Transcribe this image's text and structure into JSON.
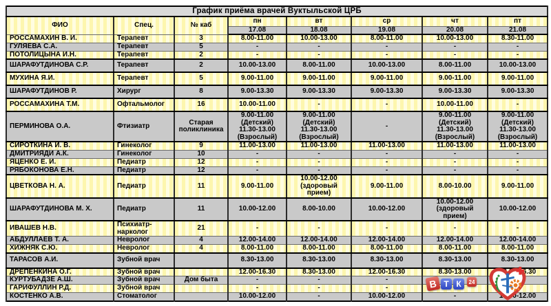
{
  "table": {
    "title": "График приёма врачей Вуктыльской ЦРБ",
    "columns": {
      "fio": "ФИО",
      "spec": "Спец.",
      "kab": "№ каб"
    },
    "days": [
      {
        "label": "пн",
        "date": "17.08"
      },
      {
        "label": "вт",
        "date": "18.08"
      },
      {
        "label": "ср",
        "date": "19.08"
      },
      {
        "label": "чт",
        "date": "20.08"
      },
      {
        "label": "пт",
        "date": "21.08"
      }
    ],
    "rows": [
      {
        "fio": "РОССАМАХИН В. И.",
        "spec": "Терапевт",
        "kab": "3",
        "times": [
          "8.00-11.00",
          "10.00-13.00",
          "8.00-11.00",
          "10.00-13.00",
          "8.30-11.00"
        ],
        "divider_below": false
      },
      {
        "fio": "ГУЛЯЕВА С.А.",
        "spec": "Терапевт",
        "kab": "5",
        "times": [
          "-",
          "-",
          "-",
          "-",
          "-"
        ],
        "divider_below": false
      },
      {
        "fio": "ПОТОЛИЦЫНА И.Н.",
        "spec": "Терапевт",
        "kab": "2",
        "times": [
          "-",
          "-",
          "-",
          "-",
          "-"
        ],
        "divider_below": true
      },
      {
        "fio": "ШАРАФУТДИНОВА С.Р.",
        "spec": "Терапевт",
        "kab": "2",
        "times": [
          "10.00-13.00",
          "8.00-11.00",
          "10.00-13.00",
          "8.00-11.00",
          "10.00-13.00"
        ],
        "divider_below": true
      },
      {
        "fio": "МУХИНА Я.И.",
        "spec": "Терапевт",
        "kab": "5",
        "times": [
          "9.00-11.00",
          "9.00-11.00",
          "9.00-11.00",
          "9.00-11.00",
          "9.00-11.00"
        ],
        "divider_below": true
      },
      {
        "fio": "ШАРАФУТДИНОВ Р.",
        "spec": "Хирург",
        "kab": "8",
        "times": [
          "9.00-13.30",
          "9.00-13.30",
          "9.00-13.30",
          "9.00-13.30",
          "9.00-13.30"
        ],
        "divider_below": true
      },
      {
        "fio": "РОССАМАХИНА Т.М.",
        "spec": "Офтальмолог",
        "kab": "16",
        "times": [
          "10.00-11.00",
          "-",
          "-",
          "10.00-11.00",
          "-"
        ],
        "divider_below": true
      },
      {
        "fio": "ПЕРМИНОВА О.А.",
        "spec": "Фтизиатр",
        "kab": "Старая\nполиклиника",
        "times": [
          "9.00-11.00\n(Детский)\n11.30-13.00\n(Взрослый)",
          "9.00-11.00\n(Детский)\n11.30-13.00\n(Взрослый)",
          "-",
          "9.00-11.00\n(Детский)\n11.30-13.00\n(Взрослый)",
          "9.00-11.00\n(Детский)\n11.30-13.00\n(Взрослый)"
        ],
        "divider_below": true
      },
      {
        "fio": "СИРОТКИНА И. В.",
        "spec": "Гинеколог",
        "kab": "9",
        "times": [
          "11.00-13.00",
          "11.00-13.00",
          "11.00-13.00",
          "11.00-13.00",
          "11.00-13.00"
        ],
        "divider_below": false
      },
      {
        "fio": "ДМИТРИЯДИ А.К.",
        "spec": "Гинеколог",
        "kab": "10",
        "times": [
          "-",
          "-",
          "-",
          "-",
          "-"
        ],
        "divider_below": false
      },
      {
        "fio": "ЯЦЕНКО Е. И.",
        "spec": "Педиатр",
        "kab": "12",
        "times": [
          "-",
          "-",
          "-",
          "-",
          "-"
        ],
        "divider_below": false
      },
      {
        "fio": "РЯБОКОНОВА Е.Н.",
        "spec": "Педиатр",
        "kab": "12",
        "times": [
          "-",
          "-",
          "-",
          "-",
          "-"
        ],
        "divider_below": true
      },
      {
        "fio": "ЦВЕТКОВА Н. А.",
        "spec": "Педиатр",
        "kab": "11",
        "times": [
          "9.00-11.00",
          "10.00-12.00\n(здоровый прием)",
          "9.00-11.00",
          "8.00-10.00",
          "9.00-11.00"
        ],
        "divider_below": true
      },
      {
        "fio": "ШАРАФУТДИНОВА М. Х.",
        "spec": "Педиатр",
        "kab": "11",
        "times": [
          "10.00-12.00",
          "8.00-10.00",
          "10.00-12.00",
          "10.00-12.00\n(здоровый прием)",
          "10.00-12.00"
        ],
        "divider_below": true
      },
      {
        "fio": "ИВАШЕВ Н.В.",
        "spec": "Психиатр-нарколог",
        "kab": "21",
        "times": [
          "-",
          "-",
          "-",
          "-",
          "-"
        ],
        "divider_below": false
      },
      {
        "fio": "АБДУЛЛАЕВ Т. А.",
        "spec": "Невролог",
        "kab": "4",
        "times": [
          "12.00-14.00",
          "12.00-14.00",
          "12.00-14.00",
          "12.00-14.00",
          "12.00-14.00"
        ],
        "divider_below": false
      },
      {
        "fio": "ХИЖНЯК С.Ю.",
        "spec": "Невролог",
        "kab": "4",
        "times": [
          "8.00-11.00",
          "8.00-11.00",
          "8.00-11.00",
          "8.00-11.00",
          "8.00-11.00"
        ],
        "divider_below": true
      },
      {
        "fio": "ТАРАСОВ А.И.",
        "spec": "Зубной врач",
        "kab": "",
        "times": [
          "8.30-13.00",
          "8.30-13.00",
          "8.30-13.00",
          "8.30-13.00",
          "8.30-13.00"
        ],
        "divider_below": true
      },
      {
        "fio": "ДРЕПЕНКИНА О.Г.",
        "spec": "Зубной врач",
        "kab": "",
        "times": [
          "12.00-16.30",
          "8.30-13.00",
          "12.00-16.30",
          "8.30-13.00",
          "12.00-16.30"
        ],
        "divider_below": false
      },
      {
        "fio": "КУРТУБАДЗЕ А.Ш.",
        "spec": "Зубной врач",
        "kab": "Дом быта",
        "times": [
          "-",
          "-",
          "-",
          "-",
          "-"
        ],
        "divider_below": false
      },
      {
        "fio": "ГАРИФУЛЛИН Р.Д.",
        "spec": "Зубной врач",
        "kab": "",
        "times": [
          "-",
          "-",
          "-",
          "-",
          "-"
        ],
        "divider_below": false
      },
      {
        "fio": "КОСТЕНКО А.В.",
        "spec": "Стоматолог",
        "kab": "",
        "times": [
          "10.00-12.00",
          "-",
          "10.00-12.00",
          "-",
          "10.00-12.00"
        ],
        "divider_below": false
      }
    ]
  },
  "logos": {
    "vtk": {
      "letter_v": "В",
      "letter_t": "Т",
      "letter_k": "К",
      "number": "24"
    },
    "hospital_emblem": "heart-medical-emblem"
  },
  "colors": {
    "row_yellow": "#ffffc2",
    "row_yellow_stripe": "#fdf6ae",
    "row_gray": "#c9c9c9",
    "title_gray": "#d9d9d9",
    "border_thick": "#000000",
    "border_thin": "#6a6a6a",
    "vtk_red": "#c12a24",
    "vtk_blue": "#2f46c0",
    "emblem_red": "#d23a35",
    "emblem_green": "#2f8f3a",
    "emblem_blue": "#2b6cb8",
    "emblem_orange": "#e87a22"
  }
}
